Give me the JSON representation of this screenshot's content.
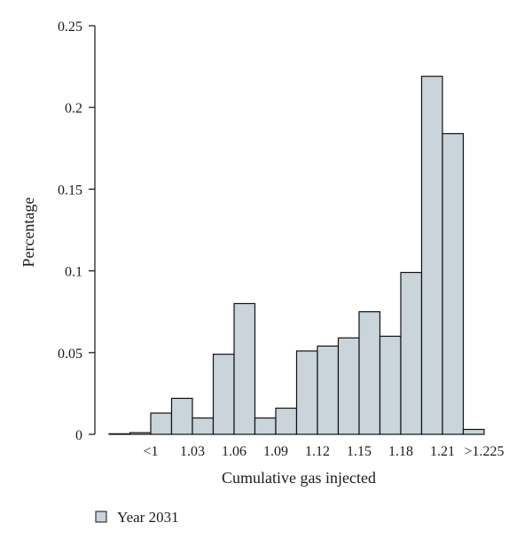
{
  "chart_data": {
    "type": "bar",
    "xlabel": "Cumulative gas injected",
    "ylabel": "Percentage",
    "ylim": [
      0,
      0.25
    ],
    "y_ticks": [
      "0",
      "0.05",
      "0.1",
      "0.15",
      "0.2",
      "0.25"
    ],
    "x_tick_labels": [
      "<1",
      "1.03",
      "1.06",
      "1.09",
      "1.12",
      "1.15",
      "1.18",
      "1.21",
      ">1.225"
    ],
    "series": [
      {
        "name": "Year 2031",
        "values": [
          0.0,
          0.001,
          0.013,
          0.022,
          0.01,
          0.049,
          0.08,
          0.01,
          0.016,
          0.051,
          0.054,
          0.059,
          0.075,
          0.06,
          0.099,
          0.219,
          0.184,
          0.003
        ]
      }
    ],
    "bar_fill": "#c9d4db",
    "bar_stroke": "#111111",
    "legend_position": "bottom-left",
    "grid": false
  }
}
